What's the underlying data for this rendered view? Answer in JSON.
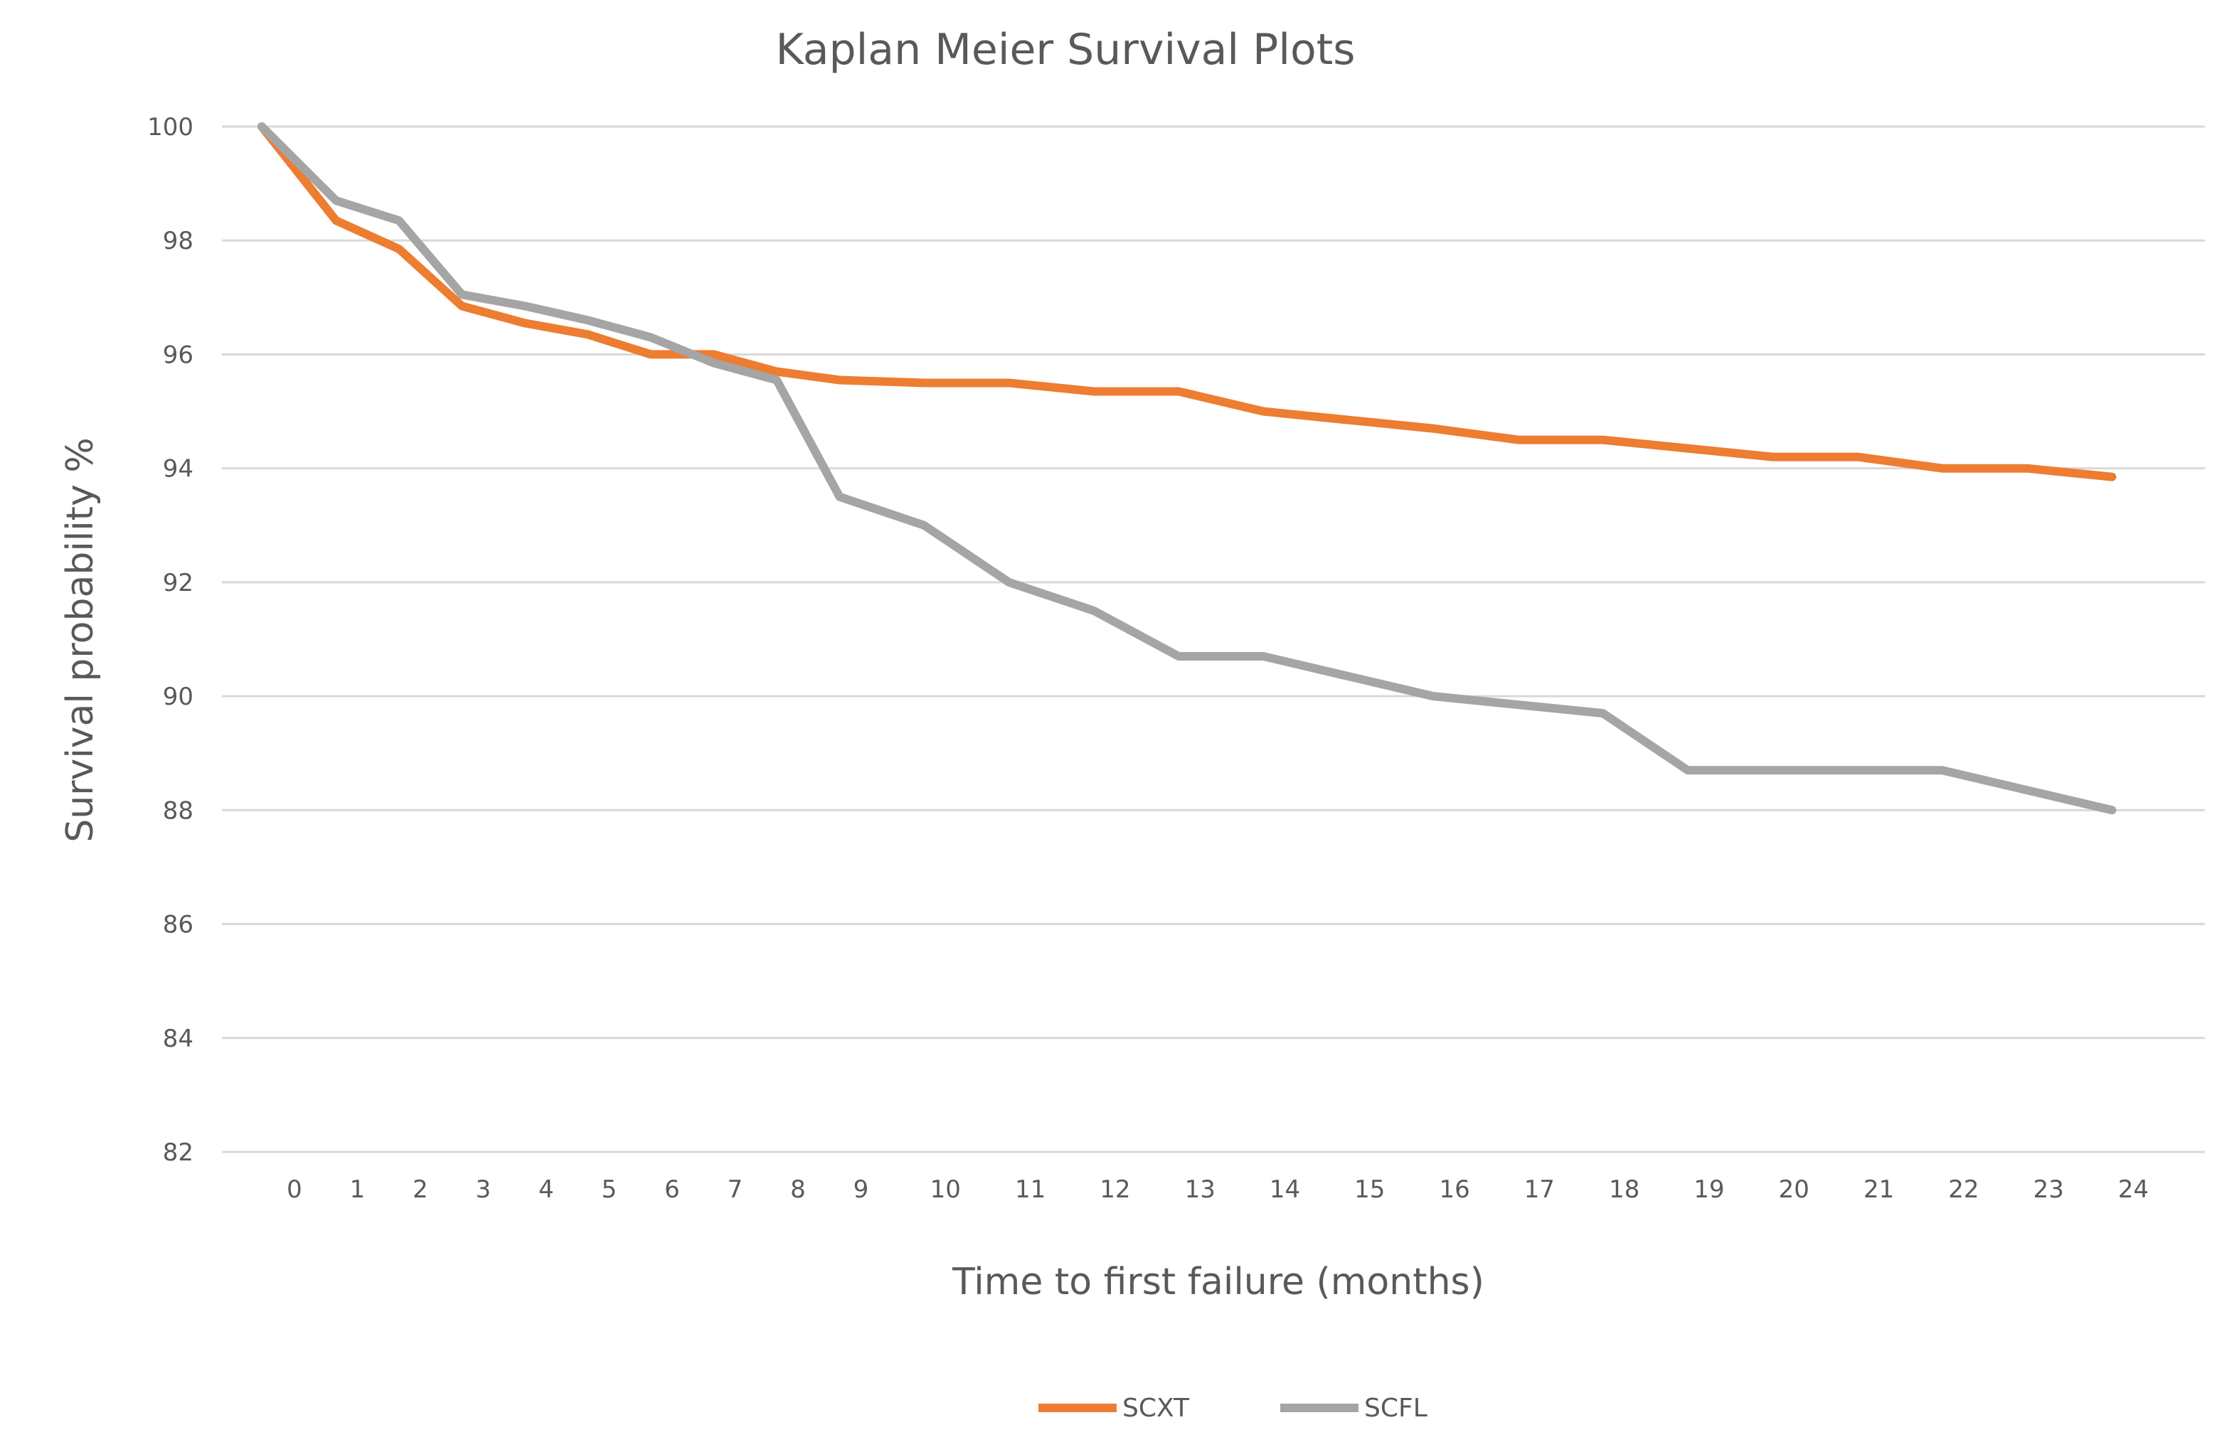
{
  "chart_data": {
    "type": "line",
    "title": "Kaplan Meier Survival Plots",
    "xlabel": "Time to first failure (months)",
    "ylabel": "Survival probability %",
    "ylim": [
      82,
      100
    ],
    "yticks": [
      82,
      84,
      86,
      88,
      90,
      92,
      94,
      96,
      98,
      100
    ],
    "categories": [
      "0",
      "1",
      "2",
      "3",
      "4",
      "5",
      "6",
      "7",
      "8",
      "9",
      "10",
      "11",
      "12",
      "13",
      "14",
      "15",
      "16",
      "17",
      "18",
      "19",
      "20",
      "21",
      "22",
      "23",
      "24"
    ],
    "grid": true,
    "legend_position": "bottom",
    "series": [
      {
        "name": "SCXT",
        "color": "#ed7d31",
        "points": [
          {
            "x": 0,
            "y": 100.0
          },
          {
            "x": 1,
            "y": 98.35
          },
          {
            "x": 2,
            "y": 97.85
          },
          {
            "x": 3,
            "y": 96.85
          },
          {
            "x": 4,
            "y": 96.55
          },
          {
            "x": 5,
            "y": 96.35
          },
          {
            "x": 6,
            "y": 96.0
          },
          {
            "x": 7,
            "y": 96.0
          },
          {
            "x": 8,
            "y": 95.7
          },
          {
            "x": 9,
            "y": 95.55
          },
          {
            "x": 10,
            "y": 95.5
          },
          {
            "x": 11,
            "y": 95.5
          },
          {
            "x": 12,
            "y": 95.35
          },
          {
            "x": 13,
            "y": 95.35
          },
          {
            "x": 14,
            "y": 95.0
          },
          {
            "x": 15,
            "y": 94.85
          },
          {
            "x": 16,
            "y": 94.7
          },
          {
            "x": 17,
            "y": 94.5
          },
          {
            "x": 18,
            "y": 94.5
          },
          {
            "x": 19,
            "y": 94.35
          },
          {
            "x": 20,
            "y": 94.2
          },
          {
            "x": 21,
            "y": 94.2
          },
          {
            "x": 22,
            "y": 94.0
          },
          {
            "x": 23,
            "y": 94.0
          },
          {
            "x": 24,
            "y": 93.85
          }
        ]
      },
      {
        "name": "SCFL",
        "color": "#a5a5a5",
        "points": [
          {
            "x": 0,
            "y": 100.0
          },
          {
            "x": 1,
            "y": 98.7
          },
          {
            "x": 2,
            "y": 98.35
          },
          {
            "x": 3,
            "y": 97.05
          },
          {
            "x": 4,
            "y": 96.85
          },
          {
            "x": 5,
            "y": 96.6
          },
          {
            "x": 6,
            "y": 96.3
          },
          {
            "x": 7,
            "y": 95.85
          },
          {
            "x": 8,
            "y": 95.55
          },
          {
            "x": 9,
            "y": 93.5
          },
          {
            "x": 10,
            "y": 93.0
          },
          {
            "x": 11,
            "y": 92.0
          },
          {
            "x": 12,
            "y": 91.5
          },
          {
            "x": 13,
            "y": 90.7
          },
          {
            "x": 14,
            "y": 90.7
          },
          {
            "x": 15,
            "y": 90.35
          },
          {
            "x": 16,
            "y": 90.0
          },
          {
            "x": 17,
            "y": 89.85
          },
          {
            "x": 18,
            "y": 89.7
          },
          {
            "x": 19,
            "y": 88.7
          },
          {
            "x": 20,
            "y": 88.7
          },
          {
            "x": 21,
            "y": 88.7
          },
          {
            "x": 22,
            "y": 88.7
          },
          {
            "x": 23,
            "y": 88.35
          },
          {
            "x": 24,
            "y": 88.0
          }
        ]
      }
    ]
  }
}
